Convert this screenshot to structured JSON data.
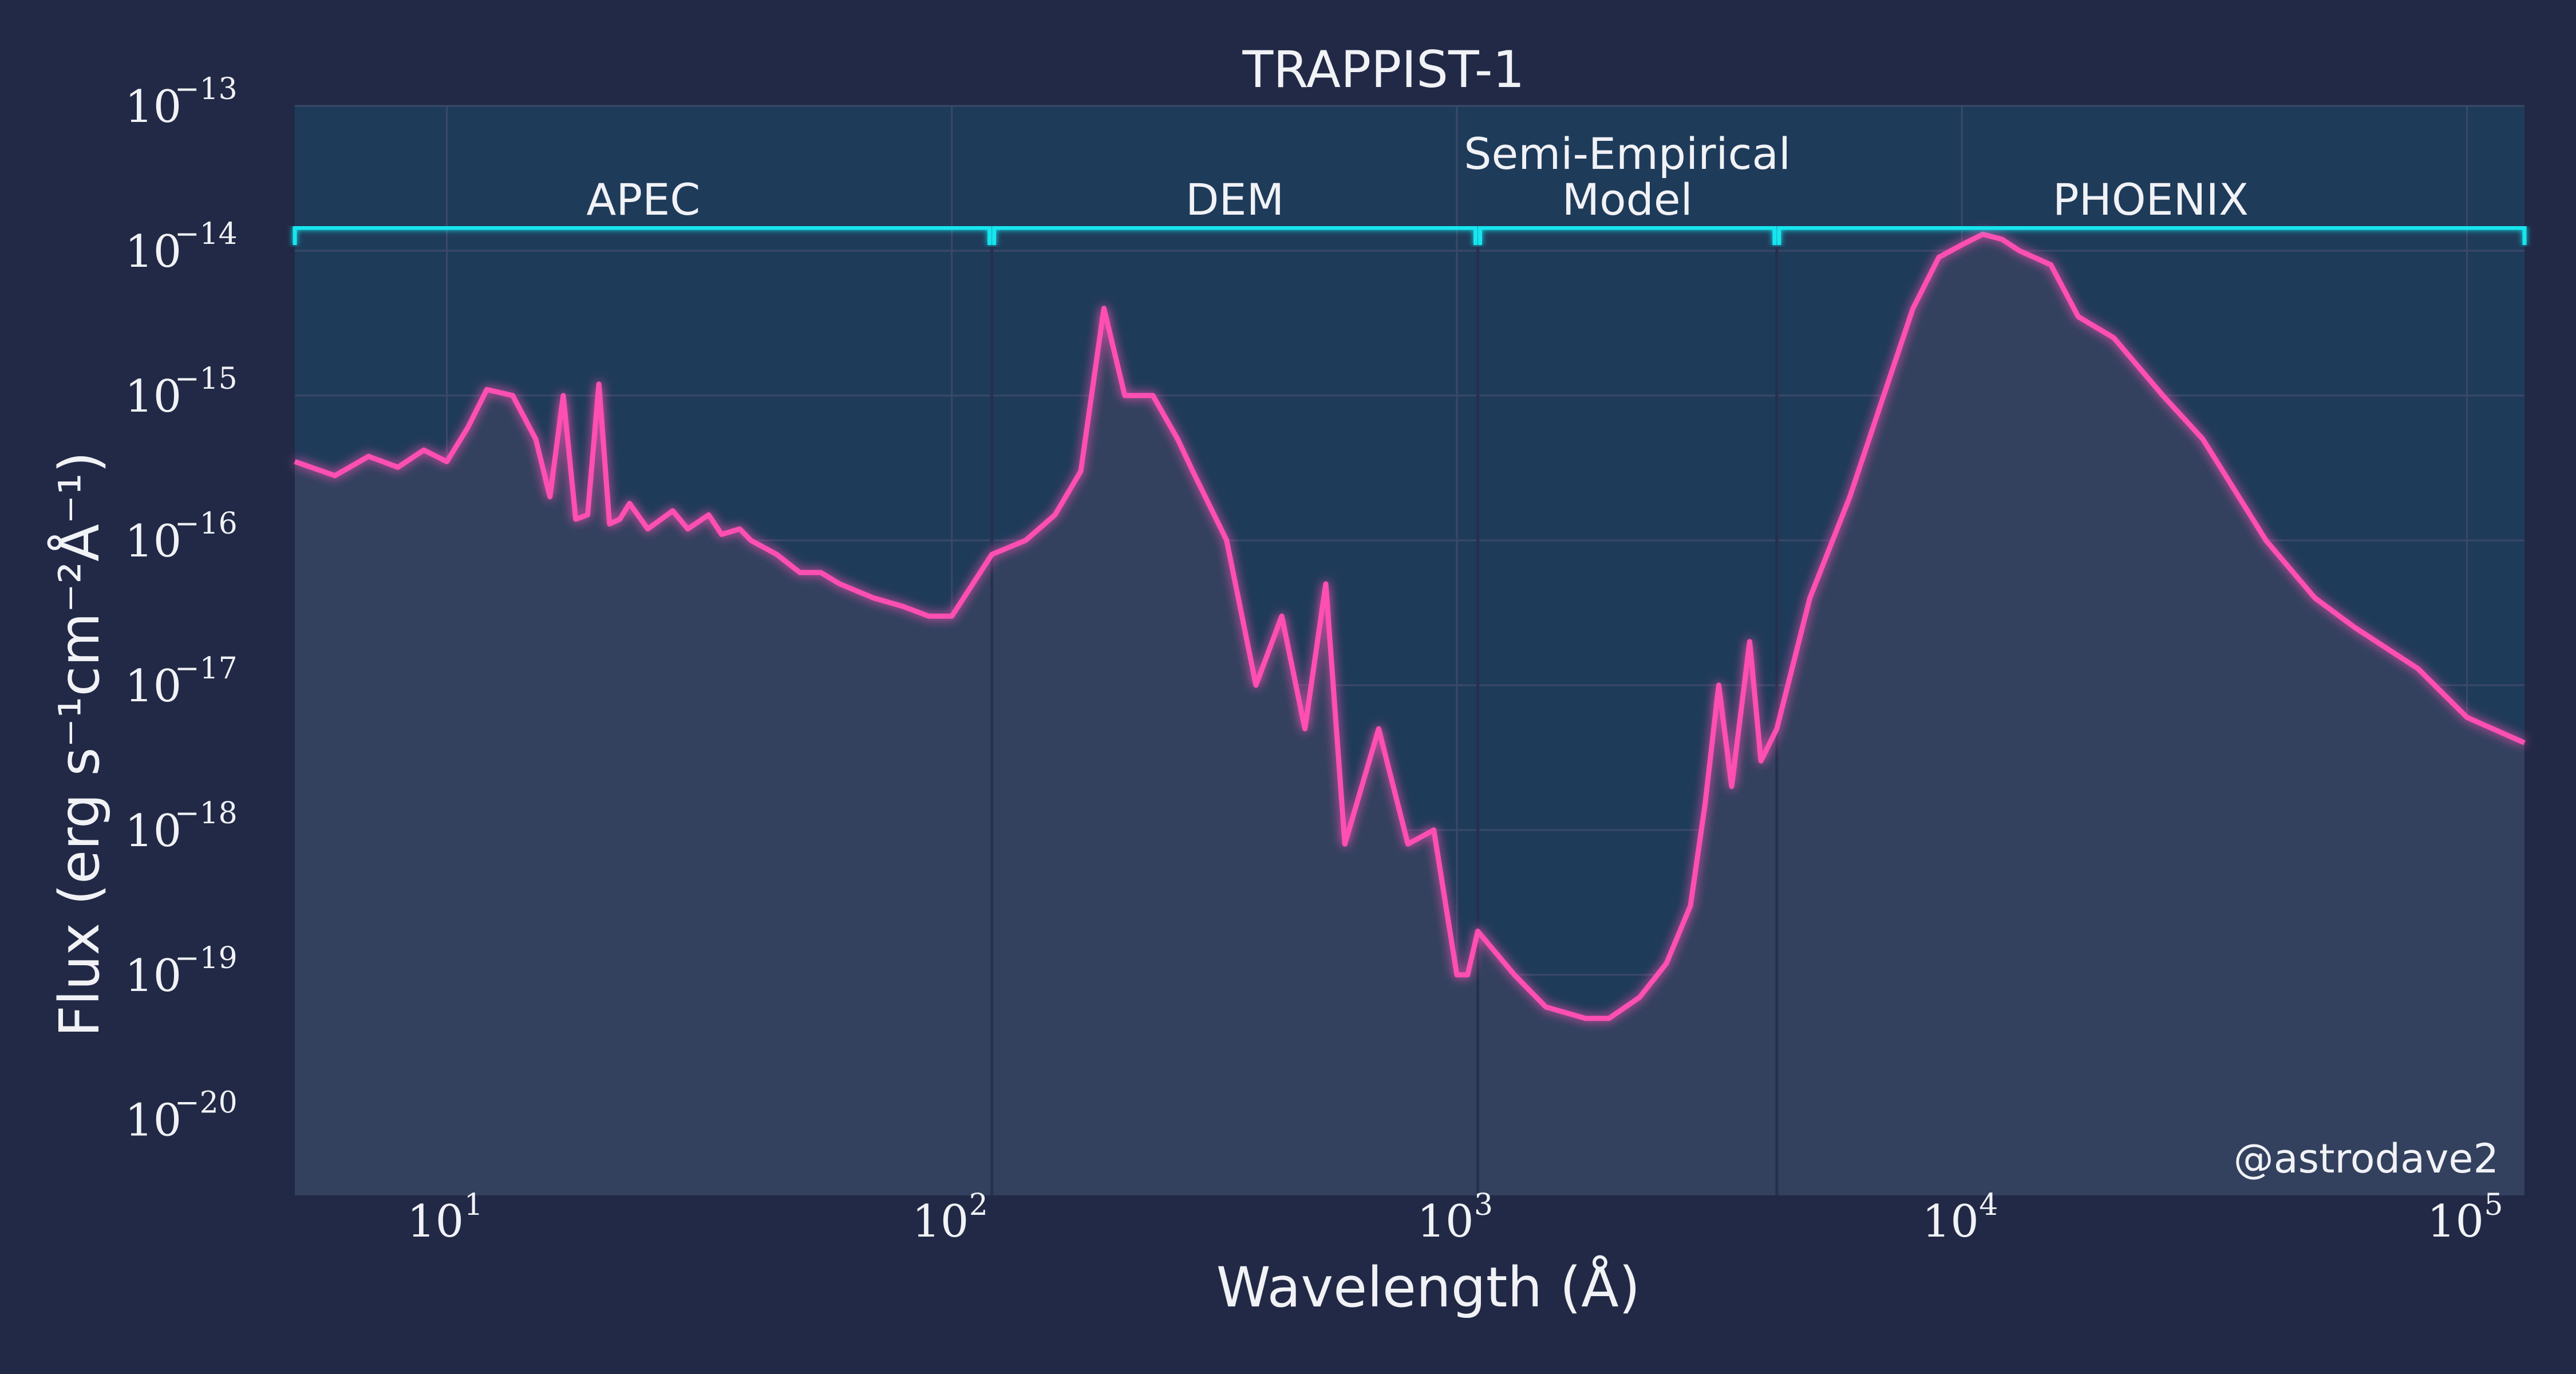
{
  "chart_data": {
    "type": "line",
    "title": "TRAPPIST-1",
    "xlabel": "Wavelength (Å)",
    "ylabel": "Flux (erg s⁻¹cm⁻²Å⁻¹)",
    "x_scale": "log",
    "y_scale": "log",
    "xlim": [
      5,
      130000
    ],
    "ylim": [
      3e-21,
      1e-13
    ],
    "grid": true,
    "colors": {
      "background": "#212946",
      "plot_fill_upper": "#1f3b5a",
      "plot_fill_lower": "#33415f",
      "line": "#ff4fb3",
      "bracket": "#18e6f0",
      "text": "#f1f2f6"
    },
    "x_ticks": [
      {
        "base": "10",
        "exp": "1",
        "value": 10
      },
      {
        "base": "10",
        "exp": "2",
        "value": 100
      },
      {
        "base": "10",
        "exp": "3",
        "value": 1000
      },
      {
        "base": "10",
        "exp": "4",
        "value": 10000
      },
      {
        "base": "10",
        "exp": "5",
        "value": 100000
      }
    ],
    "y_ticks": [
      {
        "base": "10",
        "exp": "−13",
        "value": 1e-13
      },
      {
        "base": "10",
        "exp": "−14",
        "value": 1e-14
      },
      {
        "base": "10",
        "exp": "−15",
        "value": 1e-15
      },
      {
        "base": "10",
        "exp": "−16",
        "value": 1e-16
      },
      {
        "base": "10",
        "exp": "−17",
        "value": 1e-17
      },
      {
        "base": "10",
        "exp": "−18",
        "value": 1e-18
      },
      {
        "base": "10",
        "exp": "−19",
        "value": 1e-19
      },
      {
        "base": "10",
        "exp": "−20",
        "value": 1e-20
      }
    ],
    "regions": [
      {
        "name": "APEC",
        "x_start": 5,
        "x_end": 120
      },
      {
        "name": "DEM",
        "x_start": 120,
        "x_end": 1100
      },
      {
        "name": "Semi-Empirical Model",
        "x_start": 1100,
        "x_end": 4300
      },
      {
        "name": "PHOENIX",
        "x_start": 4300,
        "x_end": 130000
      }
    ],
    "series": [
      {
        "x": [
          5,
          6,
          7,
          8,
          9,
          10,
          11,
          12,
          13.5,
          15,
          16,
          17,
          18,
          19,
          20,
          21,
          22,
          23,
          25,
          28,
          30,
          33,
          35,
          38,
          40,
          45,
          50,
          55,
          60,
          70,
          80,
          90,
          100,
          110,
          120,
          140,
          160,
          180,
          200,
          220,
          250,
          280,
          300,
          350,
          400,
          450,
          500,
          550,
          600,
          700,
          800,
          900,
          1000,
          1050,
          1100,
          1300,
          1500,
          1800,
          2000,
          2300,
          2600,
          2900,
          3100,
          3300,
          3500,
          3800,
          4000,
          4300,
          5000,
          6000,
          7000,
          8000,
          9000,
          10000,
          11000,
          12000,
          13000,
          15000,
          17000,
          20000,
          25000,
          30000,
          40000,
          50000,
          60000,
          80000,
          100000,
          130000
        ],
        "y": [
          3.5e-16,
          2.8e-16,
          3.8e-16,
          3.2e-16,
          4.2e-16,
          3.5e-16,
          6e-16,
          1.1e-15,
          1e-15,
          5e-16,
          2e-16,
          1e-15,
          1.4e-16,
          1.5e-16,
          1.2e-15,
          1.3e-16,
          1.4e-16,
          1.8e-16,
          1.2e-16,
          1.6e-16,
          1.2e-16,
          1.5e-16,
          1.1e-16,
          1.2e-16,
          1e-16,
          8e-17,
          6e-17,
          6e-17,
          5e-17,
          4e-17,
          3.5e-17,
          3e-17,
          3e-17,
          5e-17,
          8e-17,
          1e-16,
          1.5e-16,
          3e-16,
          4e-15,
          1e-15,
          1e-15,
          5e-16,
          3e-16,
          1e-16,
          1e-17,
          3e-17,
          5e-18,
          5e-17,
          8e-19,
          5e-18,
          8e-19,
          1e-18,
          1e-19,
          1e-19,
          2e-19,
          1e-19,
          6e-20,
          5e-20,
          5e-20,
          7e-20,
          1.2e-19,
          3e-19,
          1.5e-18,
          1e-17,
          2e-18,
          2e-17,
          3e-18,
          5e-18,
          4e-17,
          2e-16,
          1e-15,
          4e-15,
          9e-15,
          1.1e-14,
          1.3e-14,
          1.2e-14,
          1e-14,
          8e-15,
          3.5e-15,
          2.5e-15,
          1e-15,
          5e-16,
          1e-16,
          4e-17,
          2.5e-17,
          1.3e-17,
          6e-18,
          4e-18
        ]
      }
    ],
    "watermark": "@astrodave2"
  }
}
